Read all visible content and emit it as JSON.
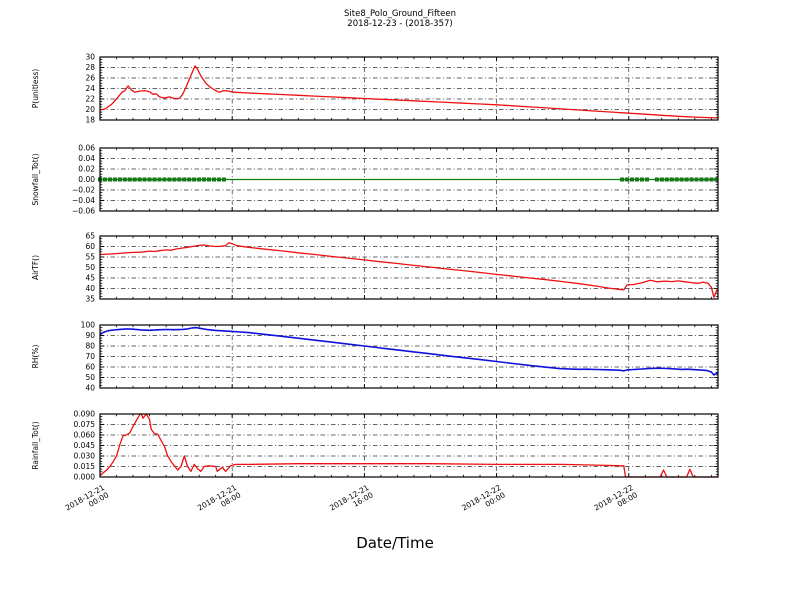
{
  "header": {
    "title_line1": "Site8_Polo_Ground_Fifteen",
    "title_line2": "2018-12-23 - (2018-357)"
  },
  "xlabel": "Date/Time",
  "colors": {
    "red_series": "#ee1111",
    "green_series": "#0f7d0f",
    "blue_series": "#1111dd",
    "grid": "#333333",
    "axis": "#000000",
    "background": "#ffffff"
  },
  "x_axis": {
    "range_hours": [
      0,
      37.4
    ],
    "major_tick_hours": [
      0,
      8,
      16,
      24,
      32
    ],
    "grid_hours": [
      8,
      16,
      24,
      32
    ],
    "minor_step_hours": 1,
    "tick_labels": [
      {
        "line1": "2018-12-21",
        "line2": "00:00"
      },
      {
        "line1": "2018-12-21",
        "line2": "08:00"
      },
      {
        "line1": "2018-12-21",
        "line2": "16:00"
      },
      {
        "line1": "2018-12-22",
        "line2": "00:00"
      },
      {
        "line1": "2018-12-22",
        "line2": "08:00"
      }
    ]
  },
  "chart_data": [
    {
      "id": "p-unitless",
      "type": "line",
      "ylabel": "P(unitless)",
      "ylim": [
        18,
        30
      ],
      "ytick_values": [
        18,
        20,
        22,
        24,
        26,
        28,
        30
      ],
      "ytick_labels": [
        "18",
        "20",
        "22",
        "24",
        "26",
        "28",
        "30"
      ],
      "color_key": "red_series",
      "points": [
        [
          0,
          19.9
        ],
        [
          0.3,
          20.1
        ],
        [
          0.7,
          21.0
        ],
        [
          1.0,
          22.0
        ],
        [
          1.3,
          23.2
        ],
        [
          1.5,
          23.6
        ],
        [
          1.7,
          24.5
        ],
        [
          1.9,
          23.7
        ],
        [
          2.1,
          23.3
        ],
        [
          2.4,
          23.5
        ],
        [
          2.7,
          23.6
        ],
        [
          3.0,
          23.4
        ],
        [
          3.2,
          22.9
        ],
        [
          3.4,
          23.0
        ],
        [
          3.6,
          22.4
        ],
        [
          3.9,
          22.2
        ],
        [
          4.2,
          22.4
        ],
        [
          4.5,
          22.1
        ],
        [
          4.8,
          22.1
        ],
        [
          5.0,
          22.9
        ],
        [
          5.2,
          24.2
        ],
        [
          5.4,
          25.7
        ],
        [
          5.6,
          27.2
        ],
        [
          5.75,
          28.3
        ],
        [
          5.9,
          27.7
        ],
        [
          6.1,
          26.4
        ],
        [
          6.4,
          25.0
        ],
        [
          6.7,
          24.2
        ],
        [
          7.0,
          23.6
        ],
        [
          7.2,
          23.3
        ],
        [
          7.5,
          23.6
        ],
        [
          7.8,
          23.5
        ],
        [
          8.1,
          23.3
        ],
        [
          9,
          23.15
        ],
        [
          10,
          23.0
        ],
        [
          11,
          22.85
        ],
        [
          12,
          22.7
        ],
        [
          13,
          22.55
        ],
        [
          14,
          22.4
        ],
        [
          15,
          22.25
        ],
        [
          16,
          22.1
        ],
        [
          17,
          21.95
        ],
        [
          18,
          21.8
        ],
        [
          19,
          21.65
        ],
        [
          20,
          21.5
        ],
        [
          21,
          21.35
        ],
        [
          22,
          21.2
        ],
        [
          23,
          21.05
        ],
        [
          24,
          20.9
        ],
        [
          25,
          20.7
        ],
        [
          26,
          20.5
        ],
        [
          27,
          20.3
        ],
        [
          28,
          20.1
        ],
        [
          29,
          19.9
        ],
        [
          30,
          19.7
        ],
        [
          31,
          19.5
        ],
        [
          32,
          19.3
        ],
        [
          33,
          19.1
        ],
        [
          34,
          18.9
        ],
        [
          35,
          18.7
        ],
        [
          36,
          18.55
        ],
        [
          36.8,
          18.45
        ],
        [
          37.4,
          18.4
        ]
      ]
    },
    {
      "id": "snowfall-tot",
      "type": "line-with-square-markers",
      "ylabel": "Snowfall_Tot()",
      "ylim": [
        -0.06,
        0.06
      ],
      "ytick_values": [
        -0.06,
        -0.04,
        -0.02,
        0.0,
        0.02,
        0.04,
        0.06
      ],
      "ytick_labels": [
        "−0.06",
        "−0.04",
        "−0.02",
        "0.00",
        "0.02",
        "0.04",
        "0.06"
      ],
      "color_key": "green_series",
      "constant_value": 0.0,
      "points": [
        [
          0,
          0.0
        ],
        [
          37.4,
          0.0
        ]
      ],
      "marker_segments_hours": [
        [
          0,
          7.7
        ],
        [
          31.6,
          33.1
        ],
        [
          33.7,
          37.4
        ]
      ],
      "marker_step_hours": 0.3
    },
    {
      "id": "airtf",
      "type": "line",
      "ylabel": "AirTF()",
      "ylim": [
        35,
        65
      ],
      "ytick_values": [
        35,
        40,
        45,
        50,
        55,
        60,
        65
      ],
      "ytick_labels": [
        "35",
        "40",
        "45",
        "50",
        "55",
        "60",
        "65"
      ],
      "color_key": "red_series",
      "points": [
        [
          0,
          56.2
        ],
        [
          0.5,
          56.4
        ],
        [
          1,
          56.6
        ],
        [
          1.5,
          56.9
        ],
        [
          2,
          57.2
        ],
        [
          2.5,
          57.3
        ],
        [
          3,
          57.8
        ],
        [
          3.3,
          57.6
        ],
        [
          3.6,
          58.0
        ],
        [
          4,
          58.4
        ],
        [
          4.3,
          58.2
        ],
        [
          4.6,
          58.8
        ],
        [
          5,
          59.3
        ],
        [
          5.3,
          59.6
        ],
        [
          5.6,
          60.0
        ],
        [
          6,
          60.5
        ],
        [
          6.3,
          60.7
        ],
        [
          6.6,
          60.3
        ],
        [
          7,
          60.0
        ],
        [
          7.3,
          60.1
        ],
        [
          7.6,
          60.4
        ],
        [
          7.8,
          61.8
        ],
        [
          8.0,
          61.3
        ],
        [
          8.3,
          60.4
        ],
        [
          8.7,
          59.9
        ],
        [
          9,
          59.6
        ],
        [
          10,
          58.7
        ],
        [
          11,
          57.9
        ],
        [
          12,
          57.0
        ],
        [
          13,
          56.2
        ],
        [
          14,
          55.3
        ],
        [
          15,
          54.5
        ],
        [
          16,
          53.6
        ],
        [
          17,
          52.7
        ],
        [
          18,
          51.9
        ],
        [
          19,
          51.0
        ],
        [
          20,
          50.2
        ],
        [
          21,
          49.3
        ],
        [
          22,
          48.5
        ],
        [
          23,
          47.6
        ],
        [
          24,
          46.7
        ],
        [
          25,
          45.9
        ],
        [
          26,
          45.0
        ],
        [
          27,
          44.2
        ],
        [
          28,
          43.3
        ],
        [
          29,
          42.3
        ],
        [
          30,
          41.2
        ],
        [
          30.8,
          40.2
        ],
        [
          31.4,
          39.6
        ],
        [
          31.7,
          39.4
        ],
        [
          31.9,
          41.7
        ],
        [
          32.3,
          41.9
        ],
        [
          32.8,
          42.7
        ],
        [
          33.3,
          43.9
        ],
        [
          33.7,
          43.2
        ],
        [
          34.2,
          43.5
        ],
        [
          34.6,
          43.3
        ],
        [
          35.0,
          43.6
        ],
        [
          35.4,
          43.2
        ],
        [
          35.8,
          42.8
        ],
        [
          36.2,
          42.5
        ],
        [
          36.5,
          43.0
        ],
        [
          36.8,
          42.5
        ],
        [
          37.0,
          40.5
        ],
        [
          37.15,
          35.8
        ],
        [
          37.3,
          38.6
        ],
        [
          37.4,
          40.3
        ]
      ]
    },
    {
      "id": "rh",
      "type": "line",
      "ylabel": "RH(%)",
      "ylim": [
        40,
        100
      ],
      "ytick_values": [
        40,
        50,
        60,
        70,
        80,
        90,
        100
      ],
      "ytick_labels": [
        "40",
        "50",
        "60",
        "70",
        "80",
        "90",
        "100"
      ],
      "color_key": "blue_series",
      "points": [
        [
          0,
          90.8
        ],
        [
          0.2,
          93.0
        ],
        [
          0.5,
          94.6
        ],
        [
          0.8,
          95.2
        ],
        [
          1.2,
          95.8
        ],
        [
          1.6,
          96.3
        ],
        [
          2.0,
          96.0
        ],
        [
          2.5,
          95.3
        ],
        [
          3.0,
          95.0
        ],
        [
          3.5,
          95.4
        ],
        [
          4.0,
          95.7
        ],
        [
          4.5,
          95.5
        ],
        [
          5.0,
          95.8
        ],
        [
          5.3,
          96.3
        ],
        [
          5.6,
          97.2
        ],
        [
          5.8,
          97.5
        ],
        [
          6.1,
          96.8
        ],
        [
          6.5,
          95.6
        ],
        [
          7.0,
          94.9
        ],
        [
          7.5,
          94.4
        ],
        [
          8.0,
          93.9
        ],
        [
          8.5,
          93.3
        ],
        [
          9,
          92.8
        ],
        [
          10,
          91.0
        ],
        [
          11,
          89.2
        ],
        [
          12,
          87.4
        ],
        [
          13,
          85.5
        ],
        [
          14,
          83.7
        ],
        [
          15,
          81.8
        ],
        [
          16,
          80.0
        ],
        [
          17,
          78.1
        ],
        [
          18,
          76.3
        ],
        [
          19,
          74.4
        ],
        [
          20,
          72.6
        ],
        [
          21,
          70.7
        ],
        [
          22,
          68.9
        ],
        [
          23,
          67.0
        ],
        [
          24,
          65.2
        ],
        [
          25,
          63.3
        ],
        [
          26,
          61.5
        ],
        [
          27,
          59.8
        ],
        [
          27.8,
          58.5
        ],
        [
          28.5,
          58.0
        ],
        [
          29,
          57.8
        ],
        [
          29.5,
          57.9
        ],
        [
          30,
          57.6
        ],
        [
          30.5,
          57.4
        ],
        [
          31,
          57.2
        ],
        [
          31.5,
          56.9
        ],
        [
          31.7,
          56.3
        ],
        [
          31.9,
          57.2
        ],
        [
          32.3,
          57.6
        ],
        [
          32.8,
          58.1
        ],
        [
          33.3,
          58.7
        ],
        [
          33.8,
          58.9
        ],
        [
          34.3,
          58.6
        ],
        [
          34.8,
          58.2
        ],
        [
          35.2,
          57.7
        ],
        [
          35.6,
          57.9
        ],
        [
          36.0,
          57.4
        ],
        [
          36.4,
          57.0
        ],
        [
          36.7,
          56.8
        ],
        [
          37.0,
          55.2
        ],
        [
          37.15,
          52.4
        ],
        [
          37.3,
          54.1
        ],
        [
          37.4,
          54.9
        ]
      ]
    },
    {
      "id": "rainfall-tot",
      "type": "line",
      "ylabel": "Rainfall_Tot()",
      "ylim": [
        0,
        0.09
      ],
      "ytick_values": [
        0,
        0.015,
        0.03,
        0.045,
        0.06,
        0.075,
        0.09
      ],
      "ytick_labels": [
        "0.000",
        "0.015",
        "0.030",
        "0.045",
        "0.060",
        "0.075",
        "0.090"
      ],
      "color_key": "red_series",
      "points": [
        [
          0,
          0.002
        ],
        [
          0.2,
          0.006
        ],
        [
          0.4,
          0.01
        ],
        [
          0.6,
          0.015
        ],
        [
          0.8,
          0.022
        ],
        [
          1.0,
          0.03
        ],
        [
          1.2,
          0.046
        ],
        [
          1.4,
          0.059
        ],
        [
          1.6,
          0.06
        ],
        [
          1.8,
          0.063
        ],
        [
          2.0,
          0.072
        ],
        [
          2.2,
          0.081
        ],
        [
          2.4,
          0.089
        ],
        [
          2.5,
          0.09
        ],
        [
          2.6,
          0.084
        ],
        [
          2.8,
          0.09
        ],
        [
          3.0,
          0.082
        ],
        [
          3.1,
          0.068
        ],
        [
          3.3,
          0.062
        ],
        [
          3.5,
          0.061
        ],
        [
          3.7,
          0.052
        ],
        [
          3.9,
          0.044
        ],
        [
          4.1,
          0.03
        ],
        [
          4.3,
          0.022
        ],
        [
          4.5,
          0.016
        ],
        [
          4.7,
          0.01
        ],
        [
          4.9,
          0.015
        ],
        [
          5.1,
          0.03
        ],
        [
          5.3,
          0.015
        ],
        [
          5.5,
          0.008
        ],
        [
          5.7,
          0.018
        ],
        [
          5.9,
          0.012
        ],
        [
          6.1,
          0.008
        ],
        [
          6.3,
          0.015
        ],
        [
          6.6,
          0.016
        ],
        [
          7.0,
          0.015
        ],
        [
          7.1,
          0.008
        ],
        [
          7.4,
          0.014
        ],
        [
          7.6,
          0.008
        ],
        [
          7.9,
          0.016
        ],
        [
          8.2,
          0.018
        ],
        [
          9,
          0.018
        ],
        [
          12,
          0.019
        ],
        [
          16,
          0.019
        ],
        [
          20,
          0.019
        ],
        [
          24,
          0.018
        ],
        [
          28,
          0.018
        ],
        [
          30,
          0.017
        ],
        [
          31.7,
          0.016
        ],
        [
          31.8,
          0.0
        ],
        [
          33.9,
          0.0
        ],
        [
          34.1,
          0.01
        ],
        [
          34.3,
          0.0
        ],
        [
          35.5,
          0.0
        ],
        [
          35.7,
          0.011
        ],
        [
          35.9,
          0.0
        ],
        [
          37.4,
          0.0
        ]
      ]
    }
  ]
}
